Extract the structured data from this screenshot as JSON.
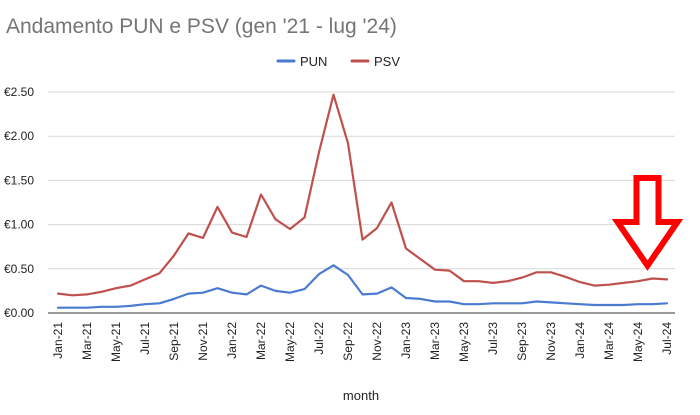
{
  "chart_data": {
    "type": "line",
    "title": "Andamento PUN e PSV (gen '21 - lug '24)",
    "xlabel": "month",
    "ylabel": "",
    "ylim": [
      0,
      2.5
    ],
    "y_ticks": [
      "€0.00",
      "€0.50",
      "€1.00",
      "€1.50",
      "€2.00",
      "€2.50"
    ],
    "y_tick_values": [
      0,
      0.5,
      1.0,
      1.5,
      2.0,
      2.5
    ],
    "grid": true,
    "legend_position": "top",
    "x": [
      "Jan-21",
      "Feb-21",
      "Mar-21",
      "Apr-21",
      "May-21",
      "Jun-21",
      "Jul-21",
      "Aug-21",
      "Sep-21",
      "Oct-21",
      "Nov-21",
      "Dec-21",
      "Jan-22",
      "Feb-22",
      "Mar-22",
      "Apr-22",
      "May-22",
      "Jun-22",
      "Jul-22",
      "Aug-22",
      "Sep-22",
      "Oct-22",
      "Nov-22",
      "Dec-22",
      "Jan-23",
      "Feb-23",
      "Mar-23",
      "Apr-23",
      "May-23",
      "Jun-23",
      "Jul-23",
      "Aug-23",
      "Sep-23",
      "Oct-23",
      "Nov-23",
      "Dec-23",
      "Jan-24",
      "Feb-24",
      "Mar-24",
      "Apr-24",
      "May-24",
      "Jun-24",
      "Jul-24"
    ],
    "x_tick_labels": [
      "Jan-21",
      "Mar-21",
      "May-21",
      "Jul-21",
      "Sep-21",
      "Nov-21",
      "Jan-22",
      "Mar-22",
      "May-22",
      "Jul-22",
      "Sep-22",
      "Nov-22",
      "Jan-23",
      "Mar-23",
      "May-23",
      "Jul-23",
      "Sep-23",
      "Nov-23",
      "Jan-24",
      "Mar-24",
      "May-24",
      "Jul-24"
    ],
    "series": [
      {
        "name": "PUN",
        "color": "#4a7bd0",
        "values": [
          0.06,
          0.06,
          0.06,
          0.07,
          0.07,
          0.08,
          0.1,
          0.11,
          0.16,
          0.22,
          0.23,
          0.28,
          0.23,
          0.21,
          0.31,
          0.25,
          0.23,
          0.27,
          0.44,
          0.54,
          0.43,
          0.21,
          0.22,
          0.29,
          0.17,
          0.16,
          0.13,
          0.13,
          0.1,
          0.1,
          0.11,
          0.11,
          0.11,
          0.13,
          0.12,
          0.11,
          0.1,
          0.09,
          0.09,
          0.09,
          0.1,
          0.1,
          0.11
        ]
      },
      {
        "name": "PSV",
        "color": "#c0504d",
        "values": [
          0.22,
          0.2,
          0.21,
          0.24,
          0.28,
          0.31,
          0.38,
          0.45,
          0.65,
          0.9,
          0.85,
          1.2,
          0.91,
          0.86,
          1.34,
          1.06,
          0.95,
          1.08,
          1.82,
          2.47,
          1.92,
          0.83,
          0.96,
          1.25,
          0.73,
          0.61,
          0.49,
          0.48,
          0.36,
          0.36,
          0.34,
          0.36,
          0.4,
          0.46,
          0.46,
          0.41,
          0.35,
          0.31,
          0.32,
          0.34,
          0.36,
          0.39,
          0.38
        ]
      }
    ],
    "annotation": {
      "shape": "arrow-down",
      "color": "#ff0000",
      "points_to": "Jun-24"
    }
  }
}
